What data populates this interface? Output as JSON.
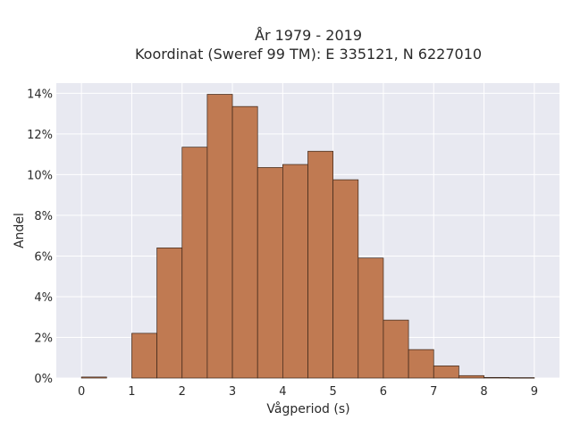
{
  "chart_data": {
    "type": "bar",
    "title_line1": "År 1979 - 2019",
    "title_line2": "Koordinat (Sweref 99 TM): E 335121, N 6227010",
    "xlabel": "Vågperiod (s)",
    "ylabel": "Andel",
    "xlim": [
      -0.5,
      9.5
    ],
    "ylim": [
      0,
      14.5
    ],
    "x_ticks": [
      0,
      1,
      2,
      3,
      4,
      5,
      6,
      7,
      8,
      9
    ],
    "y_ticks": [
      0,
      2,
      4,
      6,
      8,
      10,
      12,
      14
    ],
    "y_tick_labels": [
      "0%",
      "2%",
      "4%",
      "6%",
      "8%",
      "10%",
      "12%",
      "14%"
    ],
    "bin_width": 0.5,
    "bins": [
      {
        "start": 0.0,
        "value": 0.05
      },
      {
        "start": 0.5,
        "value": 0
      },
      {
        "start": 1.0,
        "value": 2.2
      },
      {
        "start": 1.5,
        "value": 6.4
      },
      {
        "start": 2.0,
        "value": 11.35
      },
      {
        "start": 2.5,
        "value": 13.95
      },
      {
        "start": 3.0,
        "value": 13.35
      },
      {
        "start": 3.5,
        "value": 10.35
      },
      {
        "start": 4.0,
        "value": 10.5
      },
      {
        "start": 4.5,
        "value": 11.15
      },
      {
        "start": 5.0,
        "value": 9.75
      },
      {
        "start": 5.5,
        "value": 5.9
      },
      {
        "start": 6.0,
        "value": 2.85
      },
      {
        "start": 6.5,
        "value": 1.4
      },
      {
        "start": 7.0,
        "value": 0.6
      },
      {
        "start": 7.5,
        "value": 0.12
      },
      {
        "start": 8.0,
        "value": 0.03
      },
      {
        "start": 8.5,
        "value": 0.02
      }
    ],
    "grid": true,
    "colors": {
      "bar": "#c07a52",
      "bar_edge": "#3a2518",
      "plot_bg": "#e8e9f1",
      "grid": "#ffffff"
    }
  }
}
